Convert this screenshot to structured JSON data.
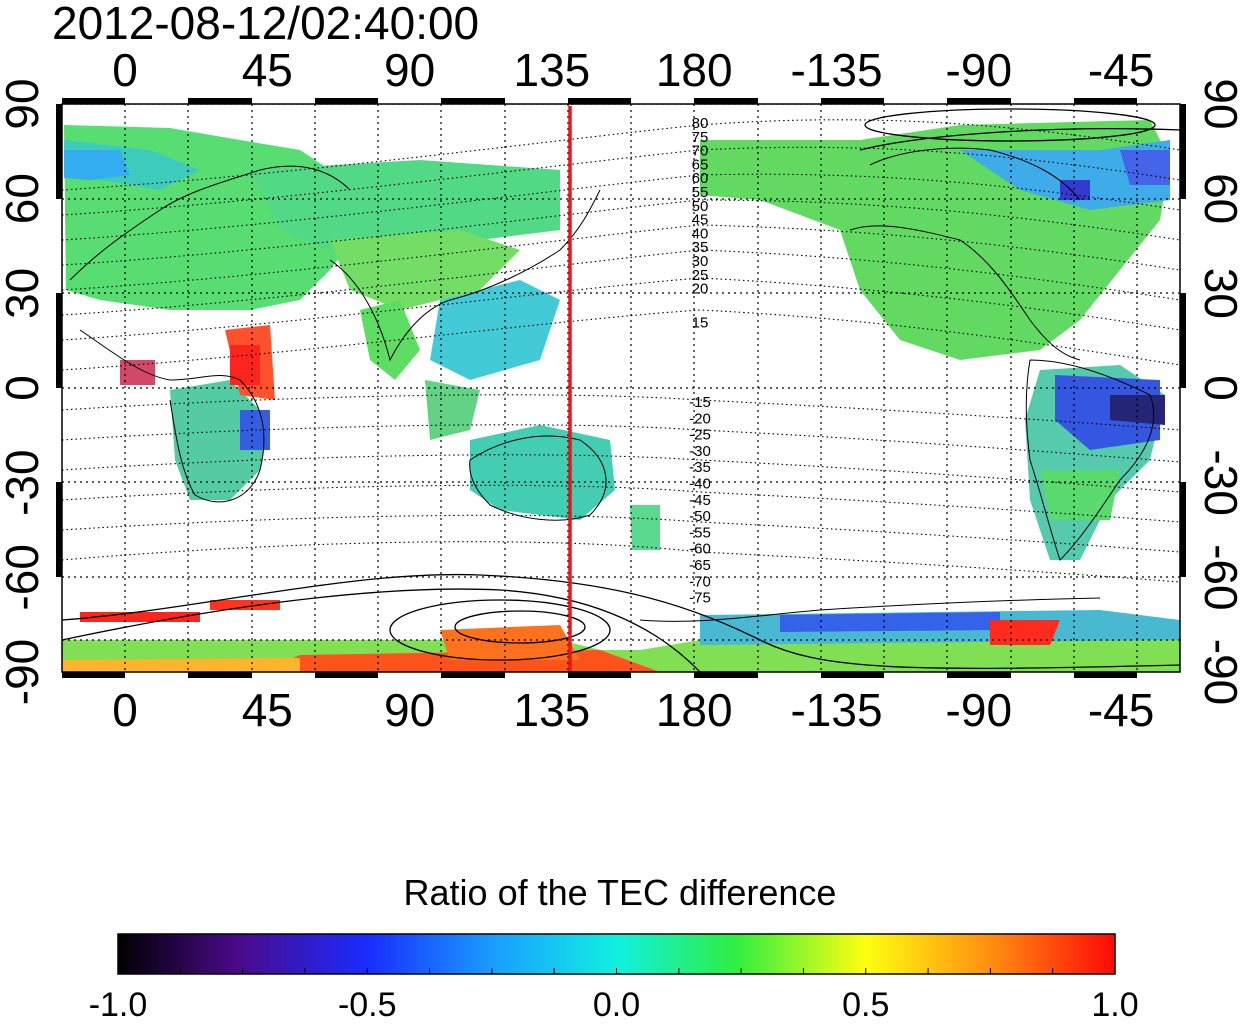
{
  "timestamp": "2012-08-12/02:40:00",
  "map": {
    "longitude_ticks": [
      "0",
      "45",
      "90",
      "135",
      "180",
      "-135",
      "-90",
      "-45"
    ],
    "latitude_ticks": [
      "90",
      "60",
      "30",
      "0",
      "-30",
      "-60",
      "-90"
    ],
    "vertical_marker_longitude": 140,
    "marker_color": "#e8171d",
    "contour_labels_north": [
      "80",
      "75",
      "70",
      "65",
      "60",
      "55",
      "50",
      "45",
      "40",
      "35",
      "30",
      "25",
      "20",
      "15"
    ],
    "contour_labels_south": [
      "-15",
      "-20",
      "-25",
      "-30",
      "-35",
      "-40",
      "-45",
      "-50",
      "-55",
      "-60",
      "-65",
      "-70",
      "-75"
    ]
  },
  "colorbar": {
    "title": "Ratio of the TEC difference",
    "ticks": [
      "-1.0",
      "-0.5",
      "0.0",
      "0.5",
      "1.0"
    ],
    "min": -1.0,
    "max": 1.0
  }
}
